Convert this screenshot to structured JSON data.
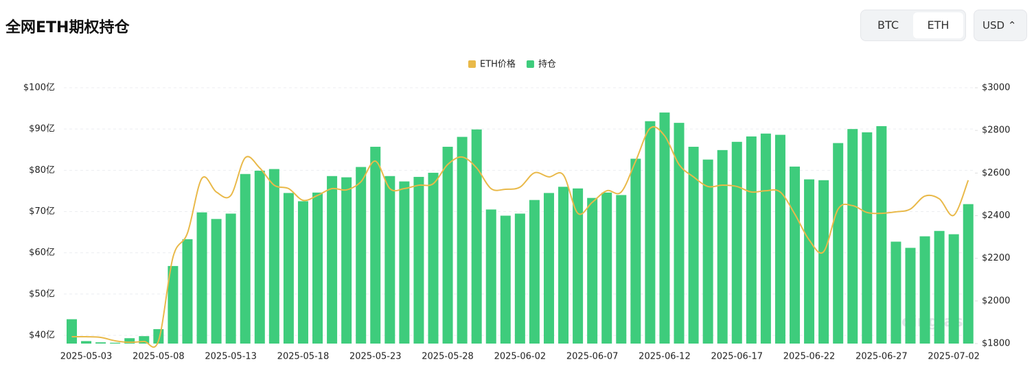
{
  "header": {
    "title": "全网ETH期权持仓",
    "tabs": [
      "BTC",
      "ETH"
    ],
    "currency": "USD"
  },
  "watermark": "coinglass",
  "chart_data": {
    "type": "bar-line",
    "categories": [
      null,
      "2025-05-03",
      null,
      null,
      null,
      null,
      "2025-05-08",
      null,
      null,
      null,
      null,
      "2025-05-13",
      null,
      null,
      null,
      null,
      "2025-05-18",
      null,
      null,
      null,
      null,
      "2025-05-23",
      null,
      null,
      null,
      null,
      "2025-05-28",
      null,
      null,
      null,
      null,
      "2025-06-02",
      null,
      null,
      null,
      null,
      "2025-06-07",
      null,
      null,
      null,
      null,
      "2025-06-12",
      null,
      null,
      null,
      null,
      "2025-06-17",
      null,
      null,
      null,
      null,
      "2025-06-22",
      null,
      null,
      null,
      null,
      "2025-06-27",
      null,
      null,
      null,
      null,
      "2025-07-02",
      null
    ],
    "series": [
      {
        "name": "ETH价格",
        "color": "#e9b949",
        "axis": "y2",
        "kind": "line",
        "values": [
          1832,
          1832,
          1829,
          1813,
          1806,
          1810,
          1813,
          2205,
          2318,
          2575,
          2511,
          2495,
          2672,
          2624,
          2543,
          2527,
          2472,
          2495,
          2527,
          2521,
          2559,
          2656,
          2527,
          2527,
          2543,
          2550,
          2640,
          2675,
          2624,
          2527,
          2524,
          2534,
          2601,
          2582,
          2591,
          2411,
          2463,
          2517,
          2511,
          2656,
          2810,
          2775,
          2640,
          2582,
          2537,
          2543,
          2537,
          2511,
          2517,
          2511,
          2408,
          2286,
          2231,
          2431,
          2447,
          2415,
          2411,
          2418,
          2431,
          2492,
          2479,
          2402,
          2566
        ]
      },
      {
        "name": "持仓",
        "color": "#3ecc7c",
        "axis": "y",
        "kind": "bar",
        "values": [
          43.9,
          38.6,
          38.3,
          38.2,
          39.3,
          39.8,
          41.5,
          56.8,
          63.3,
          69.8,
          68.2,
          69.5,
          79.1,
          79.9,
          80.3,
          74.5,
          72.5,
          74.6,
          78.6,
          78.3,
          80.8,
          85.7,
          78.6,
          77.3,
          78.4,
          79.4,
          85.7,
          88.1,
          89.9,
          70.5,
          69.0,
          69.5,
          72.8,
          74.5,
          76.0,
          75.6,
          73.3,
          74.6,
          74.0,
          82.8,
          91.9,
          94.0,
          91.5,
          85.7,
          82.6,
          84.9,
          86.9,
          88.2,
          88.9,
          88.6,
          80.9,
          77.8,
          77.6,
          86.6,
          90.0,
          89.2,
          90.7,
          62.7,
          61.2,
          64.0,
          65.3,
          64.5,
          71.8
        ]
      }
    ],
    "ylim": [
      38,
      100
    ],
    "yticks": [
      {
        "value": 40,
        "label": "$40亿"
      },
      {
        "value": 50,
        "label": "$50亿"
      },
      {
        "value": 60,
        "label": "$60亿"
      },
      {
        "value": 70,
        "label": "$70亿"
      },
      {
        "value": 80,
        "label": "$80亿"
      },
      {
        "value": 90,
        "label": "$90亿"
      },
      {
        "value": 100,
        "label": "$100亿"
      }
    ],
    "y2lim": [
      1800,
      3000
    ],
    "y2ticks": [
      {
        "value": 1800,
        "label": "$1800"
      },
      {
        "value": 2000,
        "label": "$2000"
      },
      {
        "value": 2200,
        "label": "$2200"
      },
      {
        "value": 2400,
        "label": "$2400"
      },
      {
        "value": 2600,
        "label": "$2600"
      },
      {
        "value": 2800,
        "label": "$2800"
      },
      {
        "value": 3000,
        "label": "$3000"
      }
    ],
    "grid": true,
    "legend": "top"
  }
}
